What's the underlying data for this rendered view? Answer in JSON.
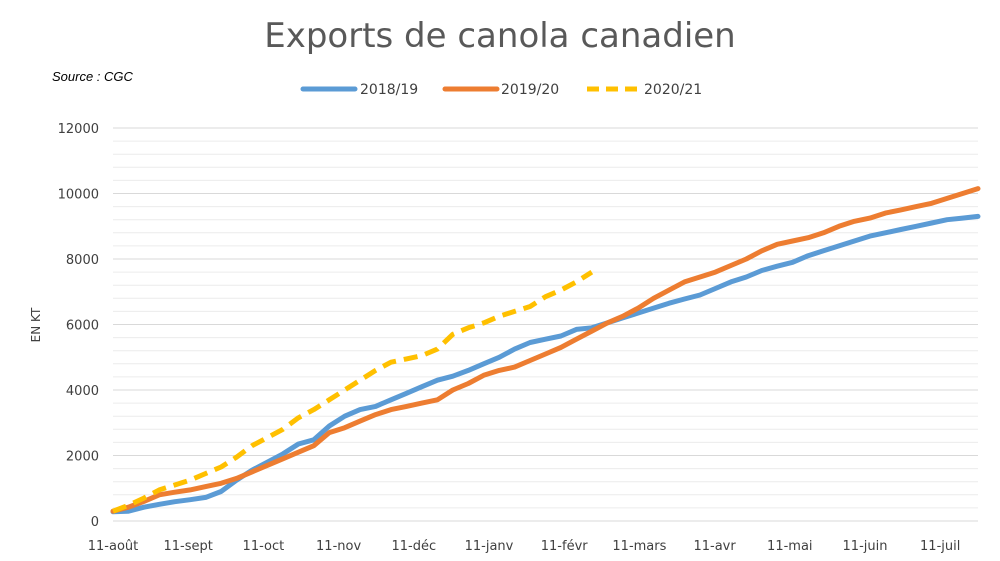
{
  "chart_data": {
    "type": "line",
    "title": "Exports de canola canadien",
    "source": "Source : CGC",
    "xlabel": "",
    "ylabel": "EN KT",
    "ylim": [
      0,
      12000
    ],
    "y_ticks": [
      0,
      2000,
      4000,
      6000,
      8000,
      10000,
      12000
    ],
    "x_ticks": [
      "11-août",
      "11-sept",
      "11-oct",
      "11-nov",
      "11-déc",
      "11-janv",
      "11-févr",
      "11-mars",
      "11-avr",
      "11-mai",
      "11-juin",
      "11-juil"
    ],
    "x_unit": "weeks since 11-août",
    "grid": true,
    "legend_position": "top",
    "series": [
      {
        "name": "2018/19",
        "color": "#5B9BD5",
        "style": "solid",
        "x": [
          0,
          1,
          2,
          3,
          4,
          5,
          6,
          7,
          8,
          9,
          10,
          11,
          12,
          13,
          14,
          15,
          16,
          17,
          18,
          19,
          20,
          21,
          22,
          23,
          24,
          25,
          26,
          27,
          28,
          29,
          30,
          31,
          32,
          33,
          34,
          35,
          36,
          37,
          38,
          39,
          40,
          41,
          42,
          43,
          44,
          45,
          46,
          47,
          48,
          49,
          50,
          51,
          52,
          53,
          54,
          55,
          56
        ],
        "values": [
          280,
          300,
          420,
          510,
          590,
          650,
          720,
          900,
          1250,
          1550,
          1800,
          2050,
          2350,
          2480,
          2900,
          3200,
          3400,
          3500,
          3700,
          3900,
          4100,
          4300,
          4420,
          4600,
          4800,
          5000,
          5250,
          5450,
          5550,
          5650,
          5850,
          5900,
          6050,
          6200,
          6350,
          6500,
          6650,
          6780,
          6900,
          7100,
          7300,
          7450,
          7650,
          7780,
          7900,
          8100,
          8250,
          8400,
          8550,
          8700,
          8800,
          8900,
          9000,
          9100,
          9200,
          9250,
          9300
        ]
      },
      {
        "name": "2019/20",
        "color": "#ED7D31",
        "style": "solid",
        "x": [
          0,
          1,
          2,
          3,
          4,
          5,
          6,
          7,
          8,
          9,
          10,
          11,
          12,
          13,
          14,
          15,
          16,
          17,
          18,
          19,
          20,
          21,
          22,
          23,
          24,
          25,
          26,
          27,
          28,
          29,
          30,
          31,
          32,
          33,
          34,
          35,
          36,
          37,
          38,
          39,
          40,
          41,
          42,
          43,
          44,
          45,
          46,
          47,
          48,
          49,
          50,
          51,
          52,
          53,
          54,
          55,
          56
        ],
        "values": [
          300,
          420,
          600,
          800,
          880,
          950,
          1050,
          1150,
          1300,
          1500,
          1700,
          1900,
          2100,
          2300,
          2700,
          2850,
          3050,
          3250,
          3400,
          3500,
          3600,
          3700,
          4000,
          4200,
          4450,
          4600,
          4700,
          4900,
          5100,
          5300,
          5550,
          5800,
          6050,
          6250,
          6500,
          6800,
          7050,
          7300,
          7450,
          7600,
          7800,
          8000,
          8250,
          8450,
          8550,
          8650,
          8800,
          9000,
          9150,
          9250,
          9400,
          9500,
          9600,
          9700,
          9850,
          10000,
          10150
        ]
      },
      {
        "name": "2020/21",
        "color": "#FFC000",
        "style": "dashed",
        "x": [
          0,
          1,
          2,
          3,
          4,
          5,
          6,
          7,
          8,
          9,
          10,
          11,
          12,
          13,
          14,
          15,
          16,
          17,
          18,
          19,
          20,
          21,
          22,
          23,
          24,
          25,
          26,
          27,
          28,
          29,
          30,
          31
        ],
        "values": [
          300,
          480,
          700,
          950,
          1100,
          1250,
          1450,
          1650,
          1950,
          2300,
          2550,
          2800,
          3150,
          3400,
          3700,
          4000,
          4300,
          4600,
          4850,
          4950,
          5050,
          5250,
          5700,
          5900,
          6050,
          6250,
          6400,
          6550,
          6850,
          7050,
          7300,
          7600
        ]
      }
    ]
  }
}
